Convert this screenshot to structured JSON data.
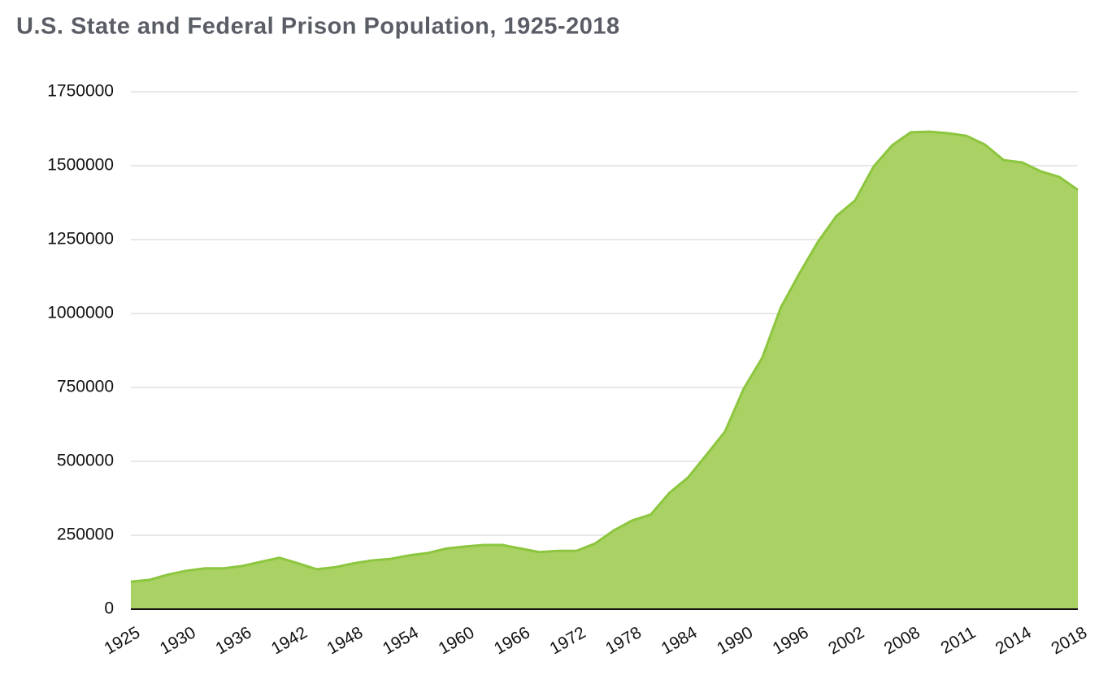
{
  "chart_data": {
    "type": "area",
    "title": "U.S. State and Federal Prison Population, 1925-2018",
    "categories": [
      "1925",
      null,
      null,
      "1930",
      null,
      null,
      "1936",
      null,
      null,
      "1942",
      null,
      null,
      "1948",
      null,
      null,
      "1954",
      null,
      null,
      "1960",
      null,
      null,
      "1966",
      null,
      null,
      "1972",
      null,
      null,
      "1978",
      null,
      null,
      "1984",
      null,
      null,
      "1990",
      null,
      null,
      "1996",
      null,
      null,
      "2002",
      null,
      null,
      "2008",
      null,
      null,
      "2011",
      null,
      null,
      "2014",
      null,
      null,
      "2018"
    ],
    "values": [
      93000,
      99000,
      117000,
      130000,
      138000,
      138000,
      146000,
      160000,
      174000,
      155000,
      135000,
      142000,
      155000,
      165000,
      170000,
      182000,
      190000,
      205000,
      212000,
      217000,
      217000,
      205000,
      193000,
      197000,
      197000,
      222000,
      266000,
      300000,
      320000,
      393000,
      445000,
      522000,
      601000,
      745000,
      850000,
      1020000,
      1135000,
      1242000,
      1330000,
      1382000,
      1497000,
      1569000,
      1613000,
      1615000,
      1610000,
      1601000,
      1571000,
      1519000,
      1511000,
      1481000,
      1462000,
      1418000
    ],
    "color": "#aad163",
    "line_color": "#8cc63f",
    "ylim": [
      0,
      1750000
    ],
    "yticks": [
      0,
      250000,
      500000,
      750000,
      1000000,
      1250000,
      1500000,
      1750000
    ],
    "grid": true
  }
}
